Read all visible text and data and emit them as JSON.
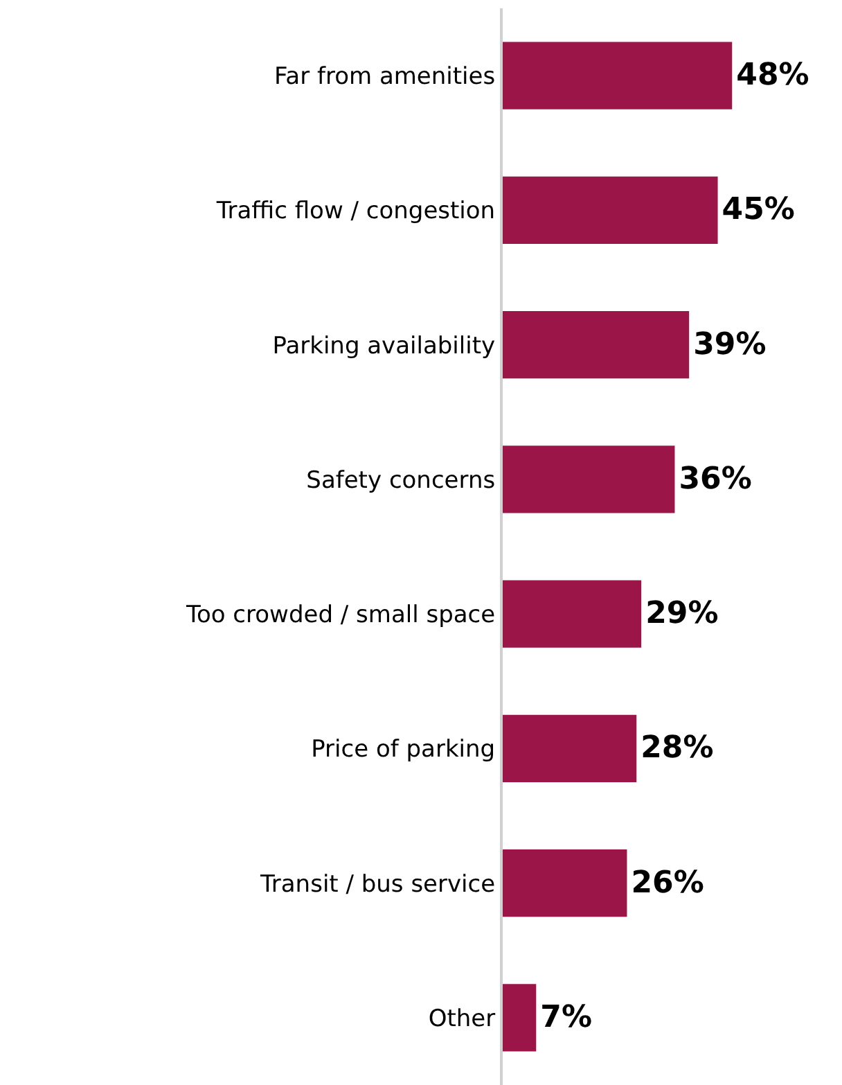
{
  "chart_data": {
    "type": "bar",
    "orientation": "horizontal",
    "categories": [
      "Far from amenities",
      "Traffic flow / congestion",
      "Parking availability",
      "Safety concerns",
      "Too crowded / small space",
      "Price of parking",
      "Transit / bus service",
      "Other"
    ],
    "values": [
      48,
      45,
      39,
      36,
      29,
      28,
      26,
      7
    ],
    "value_labels": [
      "48%",
      "45%",
      "39%",
      "36%",
      "29%",
      "28%",
      "26%",
      "7%"
    ],
    "color": "#9b1548",
    "xlim": [
      0,
      71
    ],
    "tick_labels": "y"
  }
}
